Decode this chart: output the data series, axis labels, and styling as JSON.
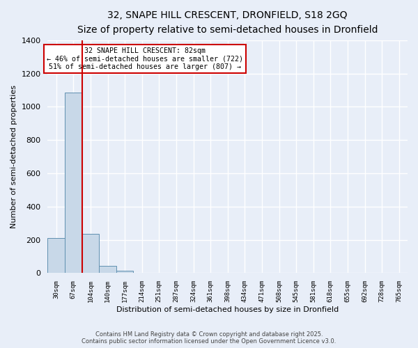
{
  "title_line1": "32, SNAPE HILL CRESCENT, DRONFIELD, S18 2GQ",
  "title_line2": "Size of property relative to semi-detached houses in Dronfield",
  "xlabel": "Distribution of semi-detached houses by size in Dronfield",
  "ylabel": "Number of semi-detached properties",
  "bin_labels": [
    "30sqm",
    "67sqm",
    "104sqm",
    "140sqm",
    "177sqm",
    "214sqm",
    "251sqm",
    "287sqm",
    "324sqm",
    "361sqm",
    "398sqm",
    "434sqm",
    "471sqm",
    "508sqm",
    "545sqm",
    "581sqm",
    "618sqm",
    "655sqm",
    "692sqm",
    "728sqm",
    "765sqm"
  ],
  "bar_heights": [
    210,
    1085,
    235,
    45,
    15,
    0,
    0,
    0,
    0,
    0,
    0,
    0,
    0,
    0,
    0,
    0,
    0,
    0,
    0,
    0,
    0
  ],
  "bar_color": "#c8d8e8",
  "bar_edge_color": "#6090b0",
  "background_color": "#e8eef8",
  "grid_color": "#ffffff",
  "ylim": [
    0,
    1400
  ],
  "yticks": [
    0,
    200,
    400,
    600,
    800,
    1000,
    1200,
    1400
  ],
  "red_line_x": 1.5,
  "annotation_text_line1": "32 SNAPE HILL CRESCENT: 82sqm",
  "annotation_text_line2": "← 46% of semi-detached houses are smaller (722)",
  "annotation_text_line3": "51% of semi-detached houses are larger (807) →",
  "annotation_color": "#cc0000",
  "footer_line1": "Contains HM Land Registry data © Crown copyright and database right 2025.",
  "footer_line2": "Contains public sector information licensed under the Open Government Licence v3.0.",
  "num_bins": 21
}
